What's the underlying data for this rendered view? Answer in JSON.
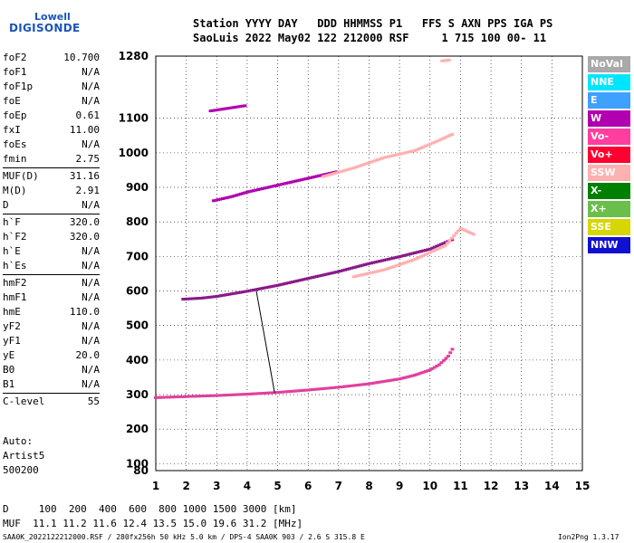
{
  "logo": {
    "line1": "Lowell",
    "line2": "DIGISONDE"
  },
  "header": {
    "line1": "Station YYYY DAY   DDD HHMMSS P1   FFS S AXN PPS IGA PS",
    "line2": "SaoLuis 2022 May02 122 212000 RSF     1 715 100 00- 11"
  },
  "params": [
    [
      {
        "k": "foF2",
        "v": "10.700"
      },
      {
        "k": "foF1",
        "v": "N/A"
      },
      {
        "k": "foF1p",
        "v": "N/A"
      },
      {
        "k": "foE",
        "v": "N/A"
      },
      {
        "k": "foEp",
        "v": "0.61"
      },
      {
        "k": "fxI",
        "v": "11.00"
      },
      {
        "k": "foEs",
        "v": "N/A"
      },
      {
        "k": "fmin",
        "v": "2.75"
      }
    ],
    [
      {
        "k": "MUF(D)",
        "v": "31.16"
      },
      {
        "k": "M(D)",
        "v": "2.91"
      },
      {
        "k": "D",
        "v": "N/A"
      }
    ],
    [
      {
        "k": "h`F",
        "v": "320.0"
      },
      {
        "k": "h`F2",
        "v": "320.0"
      },
      {
        "k": "h`E",
        "v": "N/A"
      },
      {
        "k": "h`Es",
        "v": "N/A"
      }
    ],
    [
      {
        "k": "hmF2",
        "v": "N/A"
      },
      {
        "k": "hmF1",
        "v": "N/A"
      },
      {
        "k": "hmE",
        "v": "110.0"
      },
      {
        "k": "yF2",
        "v": "N/A"
      },
      {
        "k": "yF1",
        "v": "N/A"
      },
      {
        "k": "yE",
        "v": "20.0"
      },
      {
        "k": "B0",
        "v": "N/A"
      },
      {
        "k": "B1",
        "v": "N/A"
      }
    ],
    [
      {
        "k": "C-level",
        "v": "55"
      }
    ]
  ],
  "auto": {
    "line1": "Auto:",
    "line2": "Artist5",
    "line3": "500200"
  },
  "legend": [
    {
      "label": "NoVal",
      "color": "#a9a9a9"
    },
    {
      "label": "NNE",
      "color": "#00e5ff"
    },
    {
      "label": "E",
      "color": "#3ea0ff"
    },
    {
      "label": "W",
      "color": "#b000b0"
    },
    {
      "label": "Vo-",
      "color": "#ff3ea0"
    },
    {
      "label": "Vo+",
      "color": "#ff0030"
    },
    {
      "label": "SSW",
      "color": "#ffb0b0"
    },
    {
      "label": "X-",
      "color": "#008000"
    },
    {
      "label": "X+",
      "color": "#6abf4a"
    },
    {
      "label": "SSE",
      "color": "#d6d600"
    },
    {
      "label": "NNW",
      "color": "#1010d0"
    }
  ],
  "bottom": {
    "d_line": "D     100  200  400  600  800 1000 1500 3000 [km]",
    "muf_line": "MUF  11.1 11.2 11.6 12.4 13.5 15.0 19.6 31.2 [MHz]"
  },
  "footer": {
    "left": "SAA0K_2022122212000.RSF / 280fx256h 50 kHz 5.0 km / DPS-4 SAA0K 903 / 2.6 S 315.8 E",
    "right": "Ion2Png 1.3.17"
  },
  "chart_data": {
    "type": "scatter",
    "title": "",
    "xlabel": "",
    "ylabel": "",
    "xlim": [
      1,
      15
    ],
    "ylim": [
      80,
      1280
    ],
    "x_ticks": [
      1,
      2,
      3,
      4,
      5,
      6,
      7,
      8,
      9,
      10,
      11,
      12,
      13,
      14,
      15
    ],
    "y_ticks": [
      80,
      100,
      200,
      300,
      400,
      500,
      600,
      700,
      800,
      900,
      1000,
      1100,
      1280
    ],
    "series": [
      {
        "color": "#e040a0",
        "points": [
          [
            1.0,
            290
          ],
          [
            2.0,
            293
          ],
          [
            3.0,
            296
          ],
          [
            4.0,
            300
          ],
          [
            5.0,
            305
          ],
          [
            6.0,
            312
          ],
          [
            7.0,
            320
          ],
          [
            8.0,
            330
          ],
          [
            9.0,
            344
          ],
          [
            9.5,
            355
          ],
          [
            10.0,
            370
          ],
          [
            10.3,
            385
          ],
          [
            10.6,
            410
          ],
          [
            10.8,
            440
          ]
        ]
      },
      {
        "color": "#8a1a8a",
        "points": [
          [
            1.9,
            575
          ],
          [
            2.5,
            578
          ],
          [
            3.0,
            583
          ],
          [
            4.0,
            598
          ],
          [
            5.0,
            615
          ],
          [
            6.0,
            635
          ],
          [
            7.0,
            655
          ],
          [
            8.0,
            678
          ],
          [
            9.0,
            698
          ],
          [
            10.0,
            720
          ],
          [
            10.8,
            750
          ]
        ]
      },
      {
        "color": "#ffb0b0",
        "points": [
          [
            7.5,
            640
          ],
          [
            8.5,
            660
          ],
          [
            9.5,
            690
          ],
          [
            10.5,
            730
          ],
          [
            11.0,
            780
          ],
          [
            11.5,
            760
          ]
        ]
      },
      {
        "color": "#b000b0",
        "points": [
          [
            2.9,
            860
          ],
          [
            3.5,
            872
          ],
          [
            4.0,
            885
          ],
          [
            5.0,
            905
          ],
          [
            6.0,
            925
          ],
          [
            7.0,
            945
          ]
        ]
      },
      {
        "color": "#ffb0b0",
        "points": [
          [
            6.5,
            930
          ],
          [
            7.5,
            955
          ],
          [
            8.5,
            985
          ],
          [
            9.5,
            1005
          ],
          [
            10.3,
            1035
          ],
          [
            10.8,
            1055
          ]
        ]
      },
      {
        "color": "#b000b0",
        "points": [
          [
            2.8,
            1120
          ],
          [
            3.4,
            1128
          ],
          [
            4.0,
            1136
          ]
        ]
      },
      {
        "color": "#ffb0b0",
        "points": [
          [
            10.4,
            1265
          ],
          [
            10.7,
            1268
          ]
        ]
      }
    ],
    "trace": [
      [
        4.3,
        600
      ],
      [
        4.9,
        305
      ]
    ]
  }
}
